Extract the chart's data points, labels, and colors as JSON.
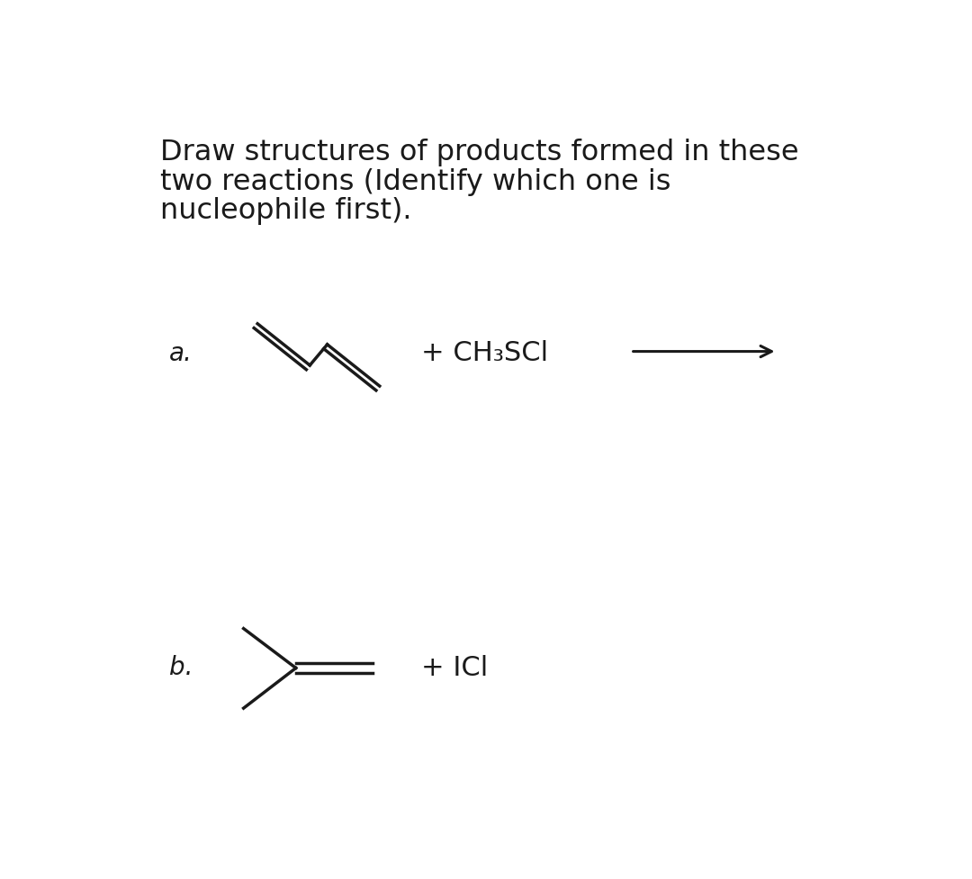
{
  "title_lines": [
    "Draw structures of products formed in these",
    "two reactions (Identify which one is",
    "nucleophile first)."
  ],
  "title_fontsize": 23,
  "title_color": "#1a1a1a",
  "label_a": "a.",
  "label_b": "b.",
  "label_fontsize": 20,
  "reagent_a": "+ CH₃SCl",
  "reagent_b": "+ ICl",
  "reagent_fontsize": 22,
  "background": "#ffffff",
  "line_color": "#1a1a1a",
  "line_width": 2.5,
  "arrow_color": "#1a1a1a"
}
